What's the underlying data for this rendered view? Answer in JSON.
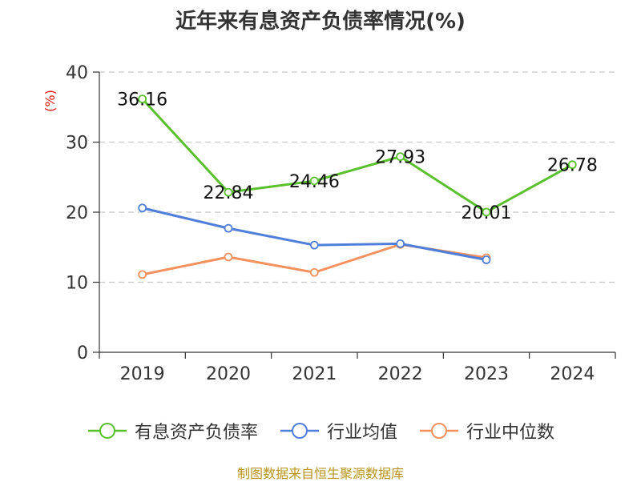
{
  "title": "近年来有息资产负债率情况(%)",
  "source_note": "制图数据来自恒生聚源数据库",
  "chart_data": {
    "type": "line",
    "title": "近年来有息资产负债率情况(%)",
    "ylabel": "(%)",
    "xlabel": "",
    "categories": [
      "2019",
      "2020",
      "2021",
      "2022",
      "2023",
      "2024"
    ],
    "ylim": [
      0,
      40
    ],
    "yticks": [
      0,
      10,
      20,
      30,
      40
    ],
    "grid": true,
    "legend_position": "bottom",
    "series": [
      {
        "name": "有息资产负债率",
        "color": "#5ac12e",
        "labels": true,
        "labels_text": [
          "36.16",
          "22.84",
          "24.46",
          "27.93",
          "20.01",
          "26.78"
        ],
        "values": [
          36.16,
          22.84,
          24.46,
          27.93,
          20.01,
          26.78
        ]
      },
      {
        "name": "行业均值",
        "color": "#4f7fd9",
        "labels": false,
        "values": [
          20.6,
          17.7,
          15.3,
          15.5,
          13.2,
          null
        ]
      },
      {
        "name": "行业中位数",
        "color": "#f5915e",
        "labels": false,
        "values": [
          11.1,
          13.6,
          11.4,
          15.4,
          13.5,
          null
        ]
      }
    ]
  }
}
